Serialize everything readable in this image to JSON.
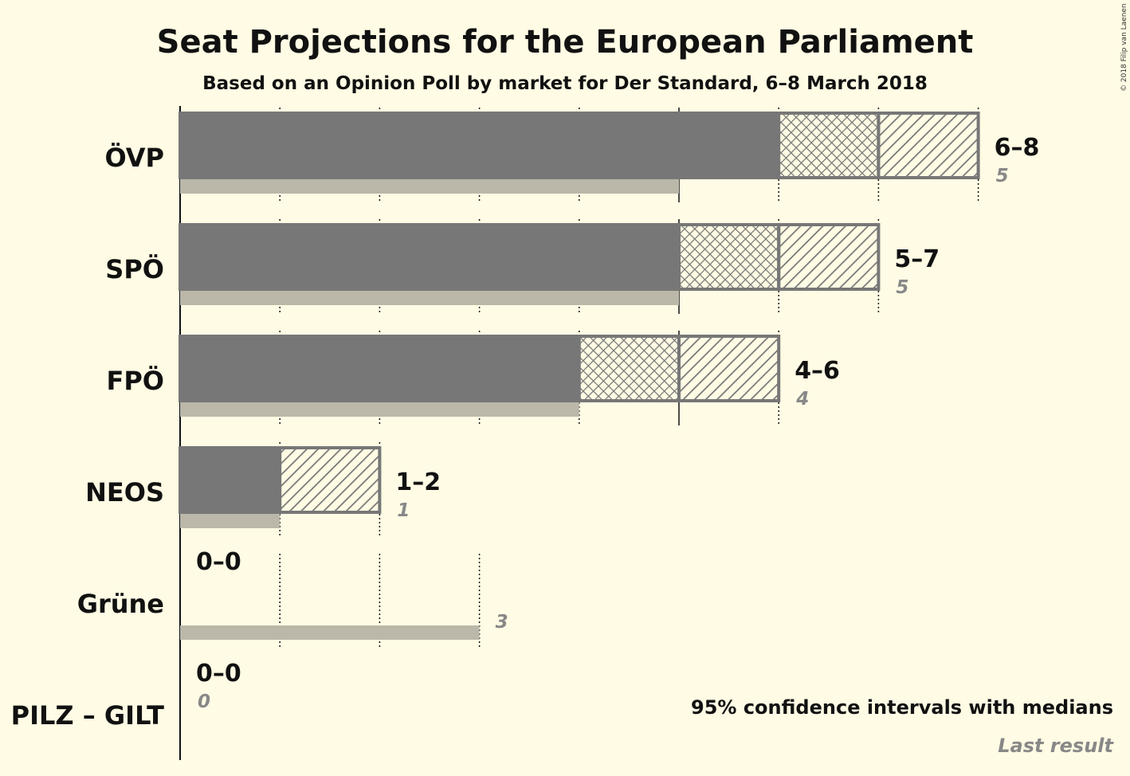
{
  "chart_data": {
    "type": "bar",
    "title": "Seat Projections for the European Parliament",
    "subtitle": "Based on an Opinion Poll by market for Der Standard, 6–8 March 2018",
    "copyright": "© 2018 Filip van Laenen",
    "legend": {
      "ci_label": "95% confidence intervals with medians",
      "last_label": "Last result",
      "placement": "bottom-right"
    },
    "xlim": [
      0,
      8
    ],
    "colors": {
      "bar": "#777777",
      "last_result": "#bbb8aa",
      "background": "#fffbe4"
    },
    "parties": [
      {
        "name": "ÖVP",
        "ci_low": 6,
        "median": 7,
        "ci_high": 8,
        "range_label": "6–8",
        "last": 5,
        "last_label": "5"
      },
      {
        "name": "SPÖ",
        "ci_low": 5,
        "median": 6,
        "ci_high": 7,
        "range_label": "5–7",
        "last": 5,
        "last_label": "5"
      },
      {
        "name": "FPÖ",
        "ci_low": 4,
        "median": 5,
        "ci_high": 6,
        "range_label": "4–6",
        "last": 4,
        "last_label": "4"
      },
      {
        "name": "NEOS",
        "ci_low": 1,
        "median": 1,
        "ci_high": 2,
        "range_label": "1–2",
        "last": 1,
        "last_label": "1"
      },
      {
        "name": "Grüne",
        "ci_low": 0,
        "median": 0,
        "ci_high": 0,
        "range_label": "0–0",
        "last": 3,
        "last_label": "3"
      },
      {
        "name": "PILZ – GILT",
        "ci_low": 0,
        "median": 0,
        "ci_high": 0,
        "range_label": "0–0",
        "last": 0,
        "last_label": "0"
      }
    ]
  }
}
